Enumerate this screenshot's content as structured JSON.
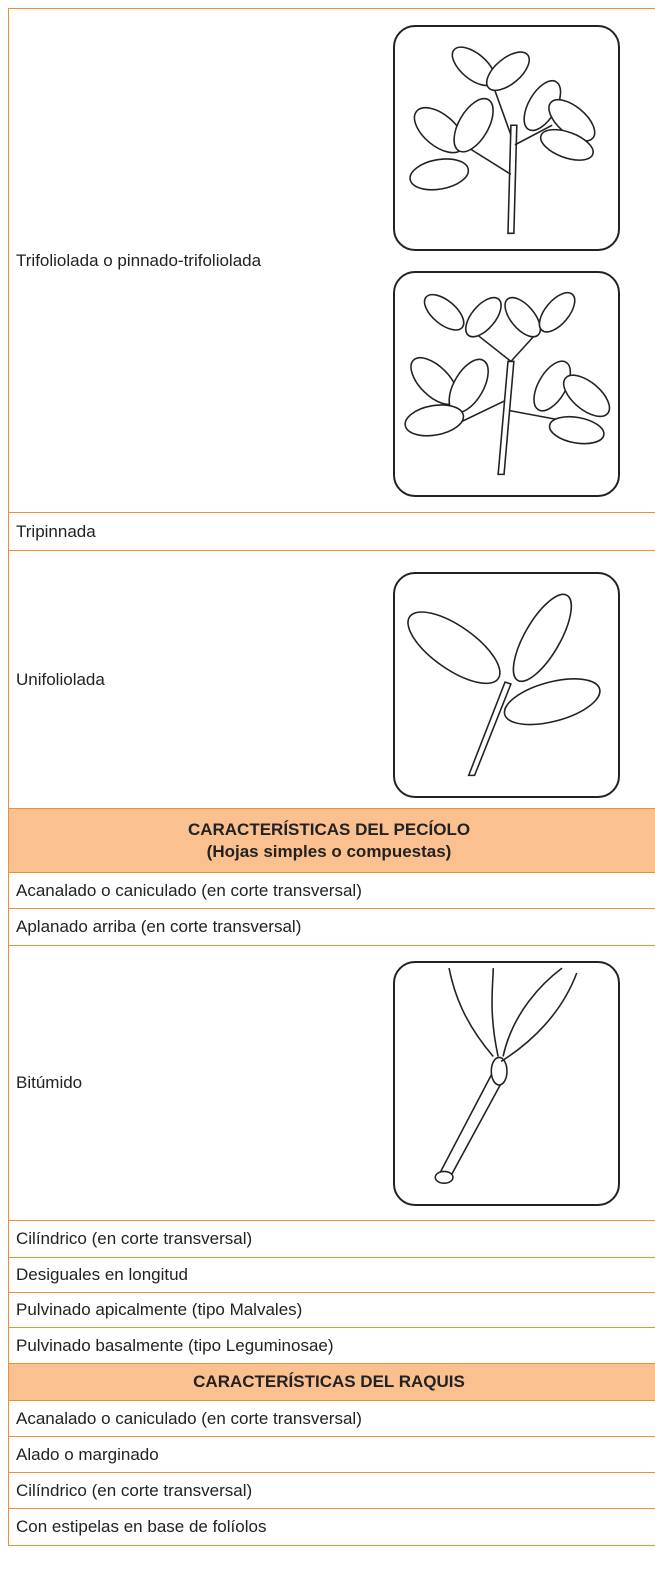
{
  "table": {
    "rows": [
      {
        "text": "Trifoliolada o pinnado-trifoliolada"
      },
      {
        "text": "Tripinnada"
      },
      {
        "text": "Unifoliolada"
      },
      {
        "header": [
          "CARACTERÍSTICAS DEL PECÍOLO",
          "(Hojas simples o compuestas)"
        ]
      },
      {
        "text": "Acanalado o caniculado (en corte transversal)"
      },
      {
        "text": "Aplanado arriba (en corte transversal)"
      },
      {
        "text": "Bitúmido"
      },
      {
        "text": "Cilíndrico (en corte transversal)"
      },
      {
        "text": "Desiguales en longitud"
      },
      {
        "text": "Pulvinado apicalmente (tipo Malvales)"
      },
      {
        "text": "Pulvinado basalmente (tipo Leguminosae)"
      },
      {
        "header": [
          "CARACTERÍSTICAS DEL RAQUIS"
        ]
      },
      {
        "text": "Acanalado o caniculado (en corte transversal)"
      },
      {
        "text": "Alado o marginado"
      },
      {
        "text": "Cilíndrico (en corte transversal)"
      },
      {
        "text": "Con estipelas en base de folíolos"
      }
    ]
  }
}
